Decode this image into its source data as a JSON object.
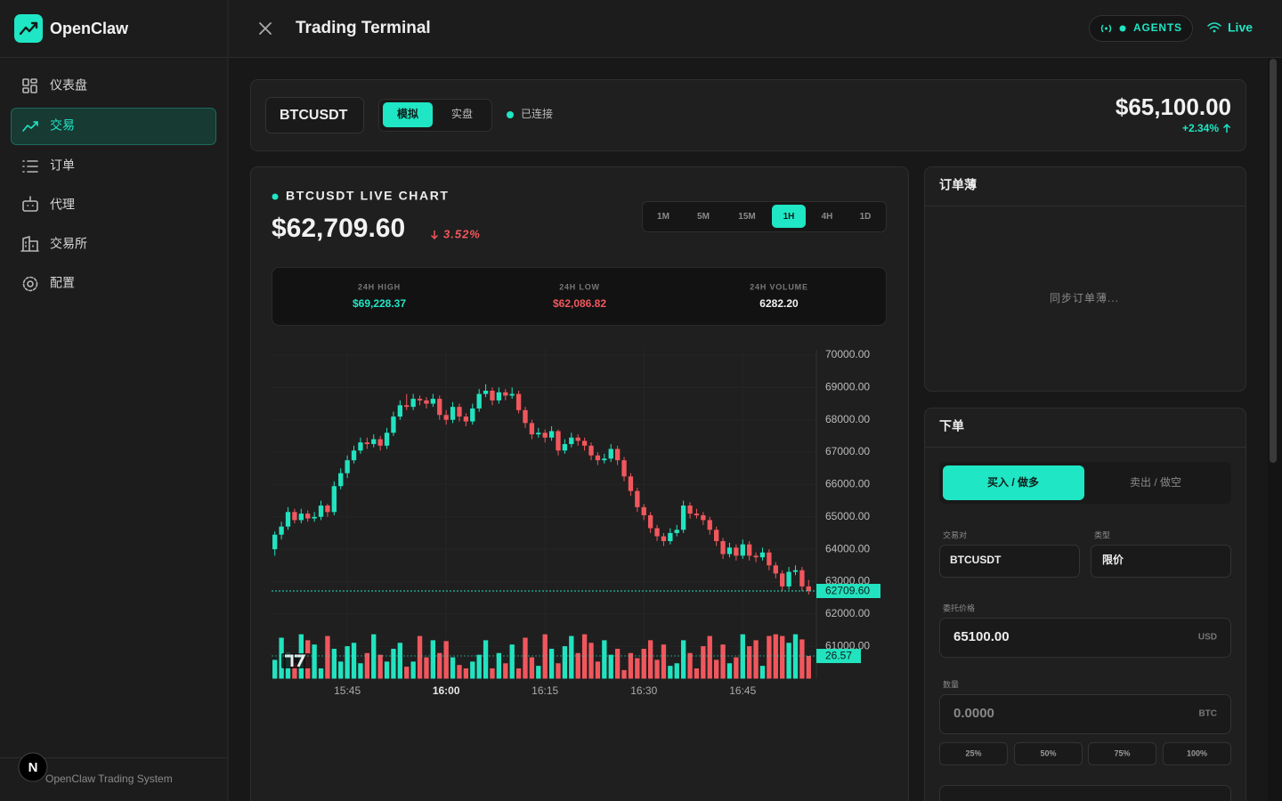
{
  "sidebar": {
    "brand": "OpenClaw",
    "nav": [
      "仪表盘",
      "交易",
      "订单",
      "代理",
      "交易所",
      "配置"
    ],
    "footer": "OpenClaw Trading System",
    "dev_badge": "N"
  },
  "header": {
    "title": "Trading Terminal",
    "agents": "AGENTS",
    "live": "Live"
  },
  "ticker_bar": {
    "symbol": "BTCUSDT",
    "modes": [
      "模拟",
      "实盘"
    ],
    "status": "已连接",
    "price": "$65,100.00",
    "change": "+2.34%"
  },
  "chart_panel": {
    "title": "BTCUSDT LIVE CHART",
    "price": "$62,709.60",
    "change": "3.52%",
    "intervals": [
      "1M",
      "5M",
      "15M",
      "1H",
      "4H",
      "1D"
    ],
    "stats": [
      {
        "label": "24H HIGH",
        "value": "$69,228.37"
      },
      {
        "label": "24H LOW",
        "value": "$62,086.82"
      },
      {
        "label": "24H VOLUME",
        "value": "6282.20"
      }
    ]
  },
  "chart_data": {
    "type": "candlestick",
    "up_color": "#22e3bf",
    "down_color": "#f0575d",
    "categories": [
      null,
      null,
      null,
      null,
      null,
      null,
      null,
      null,
      null,
      null,
      null,
      "15:45",
      null,
      null,
      null,
      null,
      null,
      null,
      null,
      null,
      null,
      null,
      null,
      null,
      null,
      null,
      "16:00",
      null,
      null,
      null,
      null,
      null,
      null,
      null,
      null,
      null,
      null,
      null,
      null,
      null,
      null,
      "16:15",
      null,
      null,
      null,
      null,
      null,
      null,
      null,
      null,
      null,
      null,
      null,
      null,
      null,
      null,
      "16:30",
      null,
      null,
      null,
      null,
      null,
      null,
      null,
      null,
      null,
      null,
      null,
      null,
      null,
      null,
      "16:45",
      null,
      null,
      null,
      null,
      null,
      null,
      null,
      null,
      null,
      null
    ],
    "ohlc": [
      [
        64000,
        64550,
        63800,
        64450
      ],
      [
        64450,
        64850,
        64300,
        64700
      ],
      [
        64700,
        65300,
        64600,
        65150
      ],
      [
        65150,
        65250,
        64800,
        64900
      ],
      [
        64900,
        65250,
        64800,
        65100
      ],
      [
        65100,
        65200,
        64850,
        64950
      ],
      [
        64950,
        65150,
        64850,
        65000
      ],
      [
        65000,
        65500,
        64900,
        65350
      ],
      [
        65350,
        65400,
        65000,
        65150
      ],
      [
        65150,
        66100,
        65050,
        65950
      ],
      [
        65950,
        66500,
        65850,
        66350
      ],
      [
        66350,
        66900,
        66200,
        66750
      ],
      [
        66750,
        67200,
        66650,
        67050
      ],
      [
        67050,
        67450,
        66950,
        67300
      ],
      [
        67300,
        67450,
        67100,
        67250
      ],
      [
        67250,
        67550,
        67150,
        67400
      ],
      [
        67400,
        67500,
        67050,
        67200
      ],
      [
        67200,
        67750,
        67100,
        67600
      ],
      [
        67600,
        68250,
        67500,
        68100
      ],
      [
        68100,
        68600,
        68000,
        68450
      ],
      [
        68450,
        68800,
        68300,
        68400
      ],
      [
        68400,
        68800,
        68300,
        68650
      ],
      [
        68650,
        68750,
        68450,
        68600
      ],
      [
        68600,
        68700,
        68350,
        68500
      ],
      [
        68500,
        68800,
        68400,
        68650
      ],
      [
        68650,
        68750,
        68000,
        68150
      ],
      [
        68150,
        68300,
        67850,
        68000
      ],
      [
        68000,
        68550,
        67900,
        68400
      ],
      [
        68400,
        68500,
        67950,
        68100
      ],
      [
        68100,
        68200,
        67800,
        67950
      ],
      [
        67950,
        68500,
        67850,
        68350
      ],
      [
        68350,
        68950,
        68250,
        68800
      ],
      [
        68800,
        69100,
        68700,
        68900
      ],
      [
        68900,
        69000,
        68450,
        68600
      ],
      [
        68600,
        69000,
        68500,
        68850
      ],
      [
        68850,
        68950,
        68600,
        68750
      ],
      [
        68750,
        69000,
        68650,
        68800
      ],
      [
        68800,
        68900,
        68200,
        68300
      ],
      [
        68300,
        68400,
        67750,
        67900
      ],
      [
        67900,
        68000,
        67400,
        67550
      ],
      [
        67550,
        67750,
        67450,
        67600
      ],
      [
        67600,
        67700,
        67300,
        67450
      ],
      [
        67450,
        67800,
        67350,
        67650
      ],
      [
        67650,
        67700,
        66900,
        67050
      ],
      [
        67050,
        67400,
        66950,
        67250
      ],
      [
        67250,
        67600,
        67150,
        67450
      ],
      [
        67450,
        67550,
        67200,
        67350
      ],
      [
        67350,
        67450,
        67050,
        67200
      ],
      [
        67200,
        67300,
        66750,
        66900
      ],
      [
        66900,
        67000,
        66600,
        66750
      ],
      [
        66750,
        66950,
        66650,
        66800
      ],
      [
        66800,
        67250,
        66700,
        67100
      ],
      [
        67100,
        67200,
        66600,
        66750
      ],
      [
        66750,
        66850,
        66100,
        66250
      ],
      [
        66250,
        66350,
        65650,
        65800
      ],
      [
        65800,
        65900,
        65150,
        65300
      ],
      [
        65300,
        65400,
        64900,
        65050
      ],
      [
        65050,
        65150,
        64500,
        64650
      ],
      [
        64650,
        64750,
        64250,
        64400
      ],
      [
        64400,
        64500,
        64100,
        64250
      ],
      [
        64250,
        64650,
        64150,
        64500
      ],
      [
        64500,
        64750,
        64400,
        64600
      ],
      [
        64600,
        65500,
        64500,
        65350
      ],
      [
        65350,
        65450,
        64950,
        65100
      ],
      [
        65100,
        65250,
        64950,
        65050
      ],
      [
        65050,
        65150,
        64750,
        64900
      ],
      [
        64900,
        65000,
        64450,
        64600
      ],
      [
        64600,
        64700,
        64100,
        64250
      ],
      [
        64250,
        64350,
        63700,
        63850
      ],
      [
        63850,
        64200,
        63750,
        64050
      ],
      [
        64050,
        64150,
        63650,
        63800
      ],
      [
        63800,
        64300,
        63700,
        64150
      ],
      [
        64150,
        64250,
        63650,
        63800
      ],
      [
        63800,
        63900,
        63600,
        63750
      ],
      [
        63750,
        64050,
        63650,
        63900
      ],
      [
        63900,
        64000,
        63350,
        63500
      ],
      [
        63500,
        63600,
        63100,
        63250
      ],
      [
        63250,
        63350,
        62700,
        62850
      ],
      [
        62850,
        63450,
        62750,
        63300
      ],
      [
        63300,
        63500,
        63200,
        63350
      ],
      [
        63350,
        63450,
        62700,
        62850
      ],
      [
        62850,
        63050,
        62600,
        62709.6
      ]
    ],
    "close_label": "62709.60",
    "volumes": [
      22,
      48,
      30,
      18,
      52,
      45,
      40,
      12,
      50,
      35,
      20,
      38,
      42,
      18,
      30,
      52,
      28,
      20,
      35,
      42,
      14,
      20,
      50,
      25,
      45,
      30,
      44,
      25,
      16,
      12,
      20,
      28,
      45,
      12,
      30,
      18,
      40,
      12,
      48,
      25,
      15,
      52,
      35,
      18,
      38,
      50,
      30,
      52,
      42,
      20,
      45,
      28,
      35,
      10,
      30,
      24,
      35,
      45,
      22,
      40,
      15,
      18,
      45,
      30,
      12,
      38,
      50,
      22,
      40,
      18,
      25,
      52,
      38,
      45,
      15,
      50,
      52,
      50,
      42,
      52,
      46,
      26.57
    ],
    "volume_lim": [
      0,
      60
    ],
    "ylim": [
      60000,
      70000
    ],
    "yticks": [
      {
        "value": 61000,
        "label": "61000.00"
      },
      {
        "value": 62000,
        "label": "62000.00"
      },
      {
        "value": 63000,
        "label": "63000.00"
      },
      {
        "value": 64000,
        "label": "64000.00"
      },
      {
        "value": 65000,
        "label": "65000.00"
      },
      {
        "value": 66000,
        "label": "66000.00"
      },
      {
        "value": 67000,
        "label": "67000.00"
      },
      {
        "value": 68000,
        "label": "68000.00"
      },
      {
        "value": 69000,
        "label": "69000.00"
      },
      {
        "value": 70000,
        "label": "70000.00"
      }
    ],
    "grid": true
  },
  "orderbook": {
    "title": "订单薄",
    "placeholder": "同步订单薄..."
  },
  "order_form": {
    "title": "下单",
    "buy": "买入 / 做多",
    "sell": "卖出 / 做空",
    "pair_label": "交易对",
    "pair": "BTCUSDT",
    "type_label": "类型",
    "type": "限价",
    "price_label": "委托价格",
    "price": "65100.00",
    "price_unit": "USD",
    "qty_label": "数量",
    "qty": "0.0000",
    "qty_unit": "BTC",
    "percents": [
      "25%",
      "50%",
      "75%",
      "100%"
    ]
  }
}
